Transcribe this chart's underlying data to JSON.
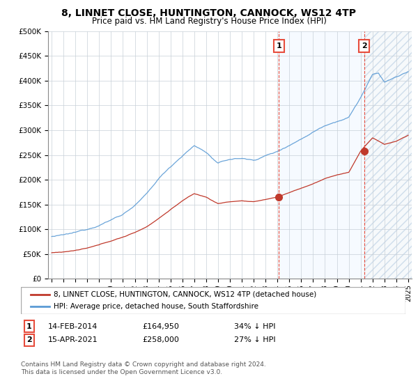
{
  "title": "8, LINNET CLOSE, HUNTINGTON, CANNOCK, WS12 4TP",
  "subtitle": "Price paid vs. HM Land Registry's House Price Index (HPI)",
  "hpi_color": "#5b9bd5",
  "price_color": "#c0392b",
  "vline_color": "#e74c3c",
  "shade_color": "#ddeeff",
  "hatch_color": "#c8d8e8",
  "ylim_min": 0,
  "ylim_max": 500000,
  "yticks": [
    0,
    50000,
    100000,
    150000,
    200000,
    250000,
    300000,
    350000,
    400000,
    450000,
    500000
  ],
  "ytick_labels": [
    "£0",
    "£50K",
    "£100K",
    "£150K",
    "£200K",
    "£250K",
    "£300K",
    "£350K",
    "£400K",
    "£450K",
    "£500K"
  ],
  "legend_label_red": "8, LINNET CLOSE, HUNTINGTON, CANNOCK, WS12 4TP (detached house)",
  "legend_label_blue": "HPI: Average price, detached house, South Staffordshire",
  "transaction_1_date": "14-FEB-2014",
  "transaction_1_price": 164950,
  "transaction_1_price_str": "£164,950",
  "transaction_1_pct": "34% ↓ HPI",
  "transaction_2_date": "15-APR-2021",
  "transaction_2_price": 258000,
  "transaction_2_price_str": "£258,000",
  "transaction_2_pct": "27% ↓ HPI",
  "footnote": "Contains HM Land Registry data © Crown copyright and database right 2024.\nThis data is licensed under the Open Government Licence v3.0.",
  "transaction_1_year": 2014.12,
  "transaction_2_year": 2021.29,
  "xlim_left": 1994.7,
  "xlim_right": 2025.3
}
